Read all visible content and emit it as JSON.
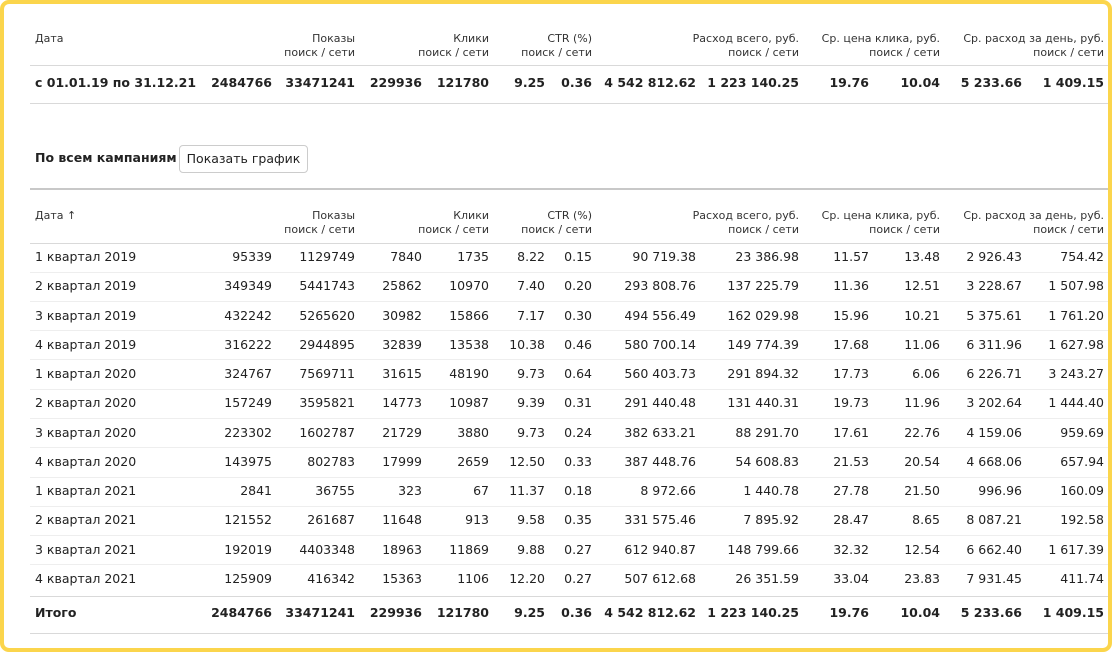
{
  "summary_table": {
    "columns": [
      {
        "title": "Дата"
      },
      {
        "title": "Показы",
        "subtitle": "поиск / сети"
      },
      {
        "title": "Клики",
        "subtitle": "поиск / сети"
      },
      {
        "title": "CTR (%)",
        "subtitle": "поиск / сети"
      },
      {
        "title": "Расход всего, руб.",
        "subtitle": "поиск / сети"
      },
      {
        "title": "Ср. цена клика, руб.",
        "subtitle": "поиск / сети"
      },
      {
        "title": "Ср. расход за день, руб.",
        "subtitle": "поиск / сети"
      }
    ],
    "row": [
      "с 01.01.19 по 31.12.21",
      "2484766",
      "33471241",
      "229936",
      "121780",
      "9.25",
      "0.36",
      "4 542 812.62",
      "1 223 140.25",
      "19.76",
      "10.04",
      "5 233.66",
      "1 409.15"
    ]
  },
  "section_title": "По всем кампаниям",
  "button_label": "Показать график",
  "detail_table": {
    "columns": [
      {
        "title": "Дата ↑"
      },
      {
        "title": "Показы",
        "subtitle": "поиск / сети"
      },
      {
        "title": "Клики",
        "subtitle": "поиск / сети"
      },
      {
        "title": "CTR (%)",
        "subtitle": "поиск / сети"
      },
      {
        "title": "Расход всего, руб.",
        "subtitle": "поиск / сети"
      },
      {
        "title": "Ср. цена клика, руб.",
        "subtitle": "поиск / сети"
      },
      {
        "title": "Ср. расход за день, руб.",
        "subtitle": "поиск / сети"
      }
    ],
    "rows": [
      [
        "1 квартал 2019",
        "95339",
        "1129749",
        "7840",
        "1735",
        "8.22",
        "0.15",
        "90 719.38",
        "23 386.98",
        "11.57",
        "13.48",
        "2 926.43",
        "754.42"
      ],
      [
        "2 квартал 2019",
        "349349",
        "5441743",
        "25862",
        "10970",
        "7.40",
        "0.20",
        "293 808.76",
        "137 225.79",
        "11.36",
        "12.51",
        "3 228.67",
        "1 507.98"
      ],
      [
        "3 квартал 2019",
        "432242",
        "5265620",
        "30982",
        "15866",
        "7.17",
        "0.30",
        "494 556.49",
        "162 029.98",
        "15.96",
        "10.21",
        "5 375.61",
        "1 761.20"
      ],
      [
        "4 квартал 2019",
        "316222",
        "2944895",
        "32839",
        "13538",
        "10.38",
        "0.46",
        "580 700.14",
        "149 774.39",
        "17.68",
        "11.06",
        "6 311.96",
        "1 627.98"
      ],
      [
        "1 квартал 2020",
        "324767",
        "7569711",
        "31615",
        "48190",
        "9.73",
        "0.64",
        "560 403.73",
        "291 894.32",
        "17.73",
        "6.06",
        "6 226.71",
        "3 243.27"
      ],
      [
        "2 квартал 2020",
        "157249",
        "3595821",
        "14773",
        "10987",
        "9.39",
        "0.31",
        "291 440.48",
        "131 440.31",
        "19.73",
        "11.96",
        "3 202.64",
        "1 444.40"
      ],
      [
        "3 квартал 2020",
        "223302",
        "1602787",
        "21729",
        "3880",
        "9.73",
        "0.24",
        "382 633.21",
        "88 291.70",
        "17.61",
        "22.76",
        "4 159.06",
        "959.69"
      ],
      [
        "4 квартал 2020",
        "143975",
        "802783",
        "17999",
        "2659",
        "12.50",
        "0.33",
        "387 448.76",
        "54 608.83",
        "21.53",
        "20.54",
        "4 668.06",
        "657.94"
      ],
      [
        "1 квартал 2021",
        "2841",
        "36755",
        "323",
        "67",
        "11.37",
        "0.18",
        "8 972.66",
        "1 440.78",
        "27.78",
        "21.50",
        "996.96",
        "160.09"
      ],
      [
        "2 квартал 2021",
        "121552",
        "261687",
        "11648",
        "913",
        "9.58",
        "0.35",
        "331 575.46",
        "7 895.92",
        "28.47",
        "8.65",
        "8 087.21",
        "192.58"
      ],
      [
        "3 квартал 2021",
        "192019",
        "4403348",
        "18963",
        "11869",
        "9.88",
        "0.27",
        "612 940.87",
        "148 799.66",
        "32.32",
        "12.54",
        "6 662.40",
        "1 617.39"
      ],
      [
        "4 квартал 2021",
        "125909",
        "416342",
        "15363",
        "1106",
        "12.20",
        "0.27",
        "507 612.68",
        "26 351.59",
        "33.04",
        "23.83",
        "7 931.45",
        "411.74"
      ]
    ],
    "total": [
      "Итого",
      "2484766",
      "33471241",
      "229936",
      "121780",
      "9.25",
      "0.36",
      "4 542 812.62",
      "1 223 140.25",
      "19.76",
      "10.04",
      "5 233.66",
      "1 409.15"
    ]
  }
}
